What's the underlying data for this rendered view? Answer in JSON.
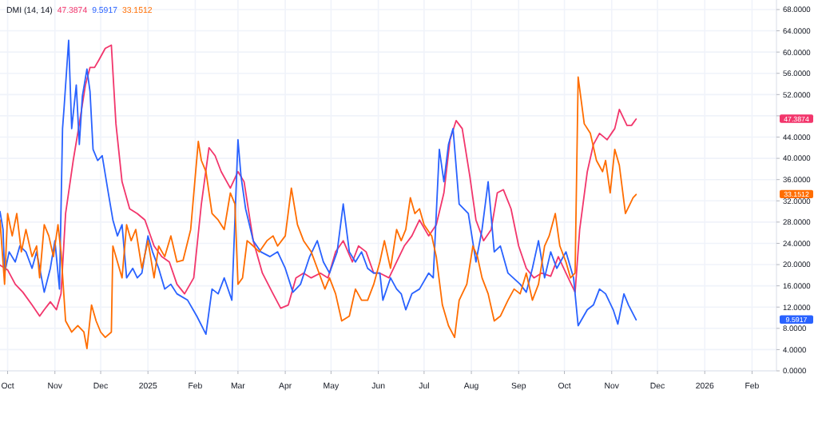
{
  "chart_data": {
    "type": "line",
    "title": "DMI (14, 14)",
    "xlim": [
      "2024-09-26",
      "2026-02-17"
    ],
    "xticks": [
      {
        "value": "2024-10-01",
        "label": "Oct"
      },
      {
        "value": "2024-11-01",
        "label": "Nov"
      },
      {
        "value": "2024-12-01",
        "label": "Dec"
      },
      {
        "value": "2025-01-01",
        "label": "2025"
      },
      {
        "value": "2025-02-01",
        "label": "Feb"
      },
      {
        "value": "2025-03-01",
        "label": "Mar"
      },
      {
        "value": "2025-04-01",
        "label": "Apr"
      },
      {
        "value": "2025-05-01",
        "label": "May"
      },
      {
        "value": "2025-06-01",
        "label": "Jun"
      },
      {
        "value": "2025-07-01",
        "label": "Jul"
      },
      {
        "value": "2025-08-01",
        "label": "Aug"
      },
      {
        "value": "2025-09-01",
        "label": "Sep"
      },
      {
        "value": "2025-10-01",
        "label": "Oct"
      },
      {
        "value": "2025-11-01",
        "label": "Nov"
      },
      {
        "value": "2025-12-01",
        "label": "Dec"
      },
      {
        "value": "2026-01-01",
        "label": "2026"
      },
      {
        "value": "2026-02-01",
        "label": "Feb"
      }
    ],
    "ylim": [
      0,
      69.8
    ],
    "yticks": [
      {
        "value": 0,
        "label": "0.0000"
      },
      {
        "value": 4,
        "label": "4.0000"
      },
      {
        "value": 8,
        "label": "8.0000"
      },
      {
        "value": 12,
        "label": "12.0000"
      },
      {
        "value": 16,
        "label": "16.0000"
      },
      {
        "value": 20,
        "label": "20.0000"
      },
      {
        "value": 24,
        "label": "24.0000"
      },
      {
        "value": 28,
        "label": "28.0000"
      },
      {
        "value": 32,
        "label": "32.0000"
      },
      {
        "value": 36,
        "label": "36.0000"
      },
      {
        "value": 40,
        "label": "40.0000"
      },
      {
        "value": 44,
        "label": "44.0000"
      },
      {
        "value": 48,
        "label": null
      },
      {
        "value": 52,
        "label": "52.0000"
      },
      {
        "value": 56,
        "label": "56.0000"
      },
      {
        "value": 60,
        "label": "60.0000"
      },
      {
        "value": 64,
        "label": "64.0000"
      },
      {
        "value": 68,
        "label": "68.0000"
      }
    ],
    "grid": true,
    "marker": "none",
    "line_style": "solid",
    "annotations": [
      "47.3874",
      "9.5917",
      "33.1512"
    ],
    "series": [
      {
        "color": "#f2366c",
        "x": [
          "2024-09-26",
          "2024-10-01",
          "2024-10-06",
          "2024-10-11",
          "2024-10-17",
          "2024-10-22",
          "2024-10-25",
          "2024-10-29",
          "2024-11-02",
          "2024-11-05",
          "2024-11-08",
          "2024-11-13",
          "2024-11-17",
          "2024-11-21",
          "2024-11-24",
          "2024-11-27",
          "2024-11-30",
          "2024-12-04",
          "2024-12-08",
          "2024-12-11",
          "2024-12-15",
          "2024-12-20",
          "2024-12-25",
          "2024-12-30",
          "2025-01-05",
          "2025-01-10",
          "2025-01-15",
          "2025-01-20",
          "2025-01-25",
          "2025-01-31",
          "2025-02-05",
          "2025-02-10",
          "2025-02-14",
          "2025-02-18",
          "2025-02-24",
          "2025-03-01",
          "2025-03-05",
          "2025-03-11",
          "2025-03-17",
          "2025-03-24",
          "2025-03-29",
          "2025-04-03",
          "2025-04-08",
          "2025-04-13",
          "2025-04-18",
          "2025-04-24",
          "2025-04-29",
          "2025-05-04",
          "2025-05-09",
          "2025-05-15",
          "2025-05-19",
          "2025-05-24",
          "2025-05-29",
          "2025-06-02",
          "2025-06-08",
          "2025-06-13",
          "2025-06-18",
          "2025-06-23",
          "2025-06-28",
          "2025-07-04",
          "2025-07-09",
          "2025-07-14",
          "2025-07-18",
          "2025-07-22",
          "2025-07-26",
          "2025-07-31",
          "2025-08-04",
          "2025-08-09",
          "2025-08-14",
          "2025-08-18",
          "2025-08-22",
          "2025-08-27",
          "2025-09-01",
          "2025-09-06",
          "2025-09-11",
          "2025-09-16",
          "2025-09-22",
          "2025-09-27",
          "2025-10-02",
          "2025-10-08",
          "2025-10-11",
          "2025-10-16",
          "2025-10-20",
          "2025-10-24",
          "2025-10-29",
          "2025-11-03",
          "2025-11-06",
          "2025-11-11",
          "2025-11-14",
          "2025-11-17"
        ],
        "values": [
          19.9,
          19,
          16.3,
          14.8,
          12.4,
          10.3,
          11.5,
          13,
          11.5,
          14.5,
          29.6,
          39.6,
          46.5,
          53.8,
          57.1,
          57.1,
          58.6,
          60.7,
          61.3,
          46.5,
          35.6,
          30.5,
          29.6,
          28.4,
          23.5,
          21.5,
          20.5,
          16.3,
          14.5,
          17.5,
          31.4,
          42,
          40.5,
          37.5,
          34.4,
          37.5,
          35.6,
          24.5,
          18.4,
          14.5,
          11.8,
          12.4,
          17.5,
          18.4,
          17.5,
          18.4,
          17.5,
          22.4,
          24.5,
          20.5,
          23.5,
          22.4,
          18.4,
          18.4,
          17.5,
          20.5,
          23.5,
          25.4,
          28.4,
          25.4,
          27.5,
          33.5,
          43.5,
          47.1,
          45.6,
          36.6,
          28.4,
          24.5,
          26.6,
          33.5,
          34.1,
          30.5,
          23.5,
          19.3,
          17.5,
          18.4,
          17.8,
          21.5,
          18.4,
          14.8,
          26.6,
          37.5,
          42.6,
          44.7,
          43.5,
          45.6,
          49.2,
          46.2,
          46.2,
          47.4
        ]
      },
      {
        "color": "#2962ff",
        "x": [
          "2024-09-26",
          "2024-09-28",
          "2024-09-29",
          "2024-10-02",
          "2024-10-06",
          "2024-10-09",
          "2024-10-13",
          "2024-10-17",
          "2024-10-20",
          "2024-10-25",
          "2024-10-29",
          "2024-11-01",
          "2024-11-04",
          "2024-11-06",
          "2024-11-07",
          "2024-11-10",
          "2024-11-12",
          "2024-11-15",
          "2024-11-17",
          "2024-11-19",
          "2024-11-22",
          "2024-11-24",
          "2024-11-26",
          "2024-11-29",
          "2024-12-02",
          "2024-12-06",
          "2024-12-09",
          "2024-12-12",
          "2024-12-15",
          "2024-12-18",
          "2024-12-22",
          "2024-12-25",
          "2024-12-28",
          "2025-01-01",
          "2025-01-04",
          "2025-01-08",
          "2025-01-12",
          "2025-01-16",
          "2025-01-20",
          "2025-01-27",
          "2025-02-02",
          "2025-02-08",
          "2025-02-12",
          "2025-02-16",
          "2025-02-20",
          "2025-02-25",
          "2025-03-01",
          "2025-03-03",
          "2025-03-06",
          "2025-03-11",
          "2025-03-16",
          "2025-03-22",
          "2025-03-27",
          "2025-04-01",
          "2025-04-06",
          "2025-04-11",
          "2025-04-17",
          "2025-04-22",
          "2025-04-26",
          "2025-04-30",
          "2025-05-05",
          "2025-05-09",
          "2025-05-13",
          "2025-05-17",
          "2025-05-21",
          "2025-05-25",
          "2025-05-29",
          "2025-06-02",
          "2025-06-04",
          "2025-06-09",
          "2025-06-13",
          "2025-06-16",
          "2025-06-19",
          "2025-06-23",
          "2025-06-28",
          "2025-07-04",
          "2025-07-07",
          "2025-07-11",
          "2025-07-14",
          "2025-07-17",
          "2025-07-20",
          "2025-07-24",
          "2025-07-30",
          "2025-08-04",
          "2025-08-08",
          "2025-08-12",
          "2025-08-16",
          "2025-08-20",
          "2025-08-25",
          "2025-09-02",
          "2025-09-06",
          "2025-09-10",
          "2025-09-14",
          "2025-09-18",
          "2025-09-22",
          "2025-09-26",
          "2025-10-02",
          "2025-10-07",
          "2025-10-10",
          "2025-10-16",
          "2025-10-20",
          "2025-10-24",
          "2025-10-28",
          "2025-11-02",
          "2025-11-05",
          "2025-11-09",
          "2025-11-12",
          "2025-11-17"
        ],
        "values": [
          30,
          26.6,
          18.4,
          22.4,
          20.5,
          23.5,
          22.4,
          19.3,
          22.4,
          14.8,
          19.3,
          24.5,
          15.4,
          45.6,
          49.5,
          62.2,
          45.6,
          53.8,
          42.6,
          51.7,
          56.8,
          52.6,
          41.7,
          39.6,
          40.5,
          33.5,
          28.4,
          25.4,
          27.5,
          17.5,
          19.3,
          17.5,
          18.4,
          25.4,
          22.4,
          19.3,
          15.4,
          16.3,
          14.5,
          13.3,
          10.3,
          6.9,
          15.4,
          14.5,
          17.5,
          13.3,
          43.5,
          36.6,
          30.5,
          24.5,
          22.4,
          21.5,
          22.4,
          19.3,
          14.8,
          16.3,
          21.5,
          24.5,
          20.5,
          18.4,
          22.4,
          31.4,
          22.4,
          20.5,
          22.4,
          19.3,
          18.4,
          18.4,
          13.3,
          17.5,
          15.4,
          14.5,
          11.5,
          14.5,
          15.4,
          18.4,
          17.5,
          41.7,
          35.6,
          42.6,
          45.6,
          31.4,
          29.6,
          20.5,
          26.6,
          35.6,
          22.4,
          23.5,
          18.4,
          16.3,
          14.8,
          19.3,
          24.5,
          17.5,
          22.4,
          19.3,
          22.4,
          17.5,
          8.5,
          11.5,
          12.4,
          15.4,
          14.5,
          11.5,
          8.8,
          14.5,
          12.4,
          9.6
        ]
      },
      {
        "color": "#ff6d00",
        "x": [
          "2024-09-26",
          "2024-09-29",
          "2024-10-01",
          "2024-10-04",
          "2024-10-07",
          "2024-10-10",
          "2024-10-13",
          "2024-10-17",
          "2024-10-20",
          "2024-10-22",
          "2024-10-25",
          "2024-10-28",
          "2024-10-31",
          "2024-11-03",
          "2024-11-05",
          "2024-11-08",
          "2024-11-12",
          "2024-11-16",
          "2024-11-20",
          "2024-11-22",
          "2024-11-25",
          "2024-11-28",
          "2024-12-01",
          "2024-12-04",
          "2024-12-08",
          "2024-12-09",
          "2024-12-12",
          "2024-12-15",
          "2024-12-18",
          "2024-12-21",
          "2024-12-24",
          "2024-12-28",
          "2025-01-01",
          "2025-01-05",
          "2025-01-08",
          "2025-01-12",
          "2025-01-16",
          "2025-01-20",
          "2025-01-24",
          "2025-01-29",
          "2025-02-01",
          "2025-02-03",
          "2025-02-05",
          "2025-02-08",
          "2025-02-12",
          "2025-02-16",
          "2025-02-20",
          "2025-02-24",
          "2025-02-27",
          "2025-03-01",
          "2025-03-04",
          "2025-03-07",
          "2025-03-11",
          "2025-03-15",
          "2025-03-20",
          "2025-03-24",
          "2025-03-27",
          "2025-04-01",
          "2025-04-05",
          "2025-04-09",
          "2025-04-13",
          "2025-04-18",
          "2025-04-22",
          "2025-04-27",
          "2025-04-30",
          "2025-05-04",
          "2025-05-08",
          "2025-05-13",
          "2025-05-17",
          "2025-05-21",
          "2025-05-25",
          "2025-05-29",
          "2025-06-02",
          "2025-06-05",
          "2025-06-09",
          "2025-06-13",
          "2025-06-16",
          "2025-06-19",
          "2025-06-22",
          "2025-06-25",
          "2025-06-28",
          "2025-07-01",
          "2025-07-06",
          "2025-07-09",
          "2025-07-13",
          "2025-07-17",
          "2025-07-21",
          "2025-07-24",
          "2025-07-29",
          "2025-08-02",
          "2025-08-05",
          "2025-08-08",
          "2025-08-12",
          "2025-08-16",
          "2025-08-20",
          "2025-08-25",
          "2025-08-29",
          "2025-09-02",
          "2025-09-06",
          "2025-09-10",
          "2025-09-14",
          "2025-09-18",
          "2025-09-21",
          "2025-09-25",
          "2025-09-28",
          "2025-10-02",
          "2025-10-05",
          "2025-10-08",
          "2025-10-10",
          "2025-10-14",
          "2025-10-18",
          "2025-10-22",
          "2025-10-26",
          "2025-10-28",
          "2025-10-31",
          "2025-11-03",
          "2025-11-06",
          "2025-11-10",
          "2025-11-13",
          "2025-11-15",
          "2025-11-17"
        ],
        "values": [
          28.4,
          16.3,
          29.6,
          25.4,
          29.6,
          22.4,
          26.6,
          21.5,
          23.5,
          17.5,
          27.5,
          25.4,
          21.5,
          27.5,
          22.4,
          9.4,
          7.3,
          8.5,
          7.3,
          4.2,
          12.4,
          9.4,
          7.3,
          6.3,
          7.3,
          23.5,
          20.5,
          17.5,
          27.5,
          24.5,
          26.6,
          19.3,
          24.5,
          17.5,
          23.5,
          21.5,
          25.4,
          20.5,
          20.8,
          26.6,
          36.6,
          43.2,
          39.6,
          37.5,
          29.6,
          28.4,
          26.6,
          33.5,
          31.4,
          16.3,
          17.5,
          24.5,
          23.5,
          22.4,
          24.5,
          25.4,
          23.5,
          25.4,
          34.4,
          27.5,
          24.5,
          22.4,
          19.3,
          15.4,
          17.5,
          14.5,
          9.4,
          10.3,
          15.4,
          13.3,
          13.3,
          16.3,
          20.5,
          24.5,
          19.3,
          26.6,
          24.5,
          26.6,
          32.6,
          29.6,
          30.5,
          27.5,
          25.4,
          21.5,
          12.4,
          8.5,
          6.3,
          13.3,
          16.3,
          23.5,
          21.5,
          17.5,
          14.5,
          9.4,
          10.3,
          13.3,
          15.4,
          14.5,
          18.4,
          13.3,
          16.3,
          23.5,
          25.4,
          29.6,
          23.5,
          20.5,
          17.5,
          18.4,
          55.3,
          46.5,
          44.7,
          39.6,
          37.5,
          39.6,
          33.5,
          41.7,
          38.7,
          29.6,
          31.4,
          32.6,
          33.2
        ]
      }
    ]
  }
}
